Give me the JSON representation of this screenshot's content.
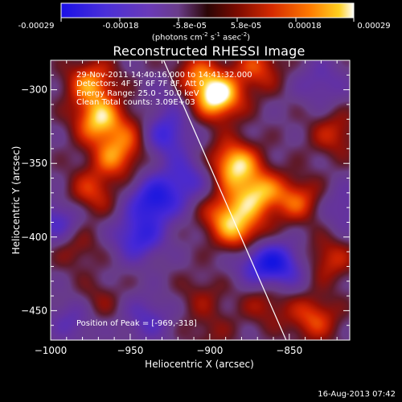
{
  "colorbar": {
    "ticks": [
      "-0.00029",
      "-0.00018",
      "-5.8e-05",
      "5.8e-05",
      "0.00018",
      "0.00029"
    ],
    "units_prefix": "(photons cm",
    "units_exp1": "-2",
    "units_mid": " s",
    "units_exp2": "-1",
    "units_mid2": " asec",
    "units_exp3": "-2",
    "units_suffix": ")"
  },
  "chart_data": {
    "type": "heatmap",
    "title": "Reconstructed RHESSI Image",
    "xlabel": "Heliocentric X (arcsec)",
    "ylabel": "Heliocentric Y (arcsec)",
    "xlim": [
      -1000,
      -812
    ],
    "ylim": [
      -470,
      -280
    ],
    "xticks": [
      -1000,
      -950,
      -900,
      -850
    ],
    "yticks": [
      -450,
      -400,
      -350,
      -300
    ],
    "colormap": "RHESSI red-yellow / purple-blue",
    "value_range": [
      -0.00029,
      0.00029
    ],
    "peak": {
      "x": -969,
      "y": -318
    },
    "limb_line": {
      "x_top": -929,
      "x_bottom": -852
    },
    "blobs": [
      {
        "x": -895,
        "y": -305,
        "v": 0.00029
      },
      {
        "x": -910,
        "y": -292,
        "v": 0.0002
      },
      {
        "x": -870,
        "y": -285,
        "v": 0.00015
      },
      {
        "x": -975,
        "y": -295,
        "v": 0.0002
      },
      {
        "x": -970,
        "y": -320,
        "v": 0.00024
      },
      {
        "x": -960,
        "y": -345,
        "v": 0.00018
      },
      {
        "x": -975,
        "y": -370,
        "v": 0.00014
      },
      {
        "x": -945,
        "y": -330,
        "v": 0.00012
      },
      {
        "x": -985,
        "y": -405,
        "v": 0.0001
      },
      {
        "x": -972,
        "y": -445,
        "v": 9e-05
      },
      {
        "x": -885,
        "y": -350,
        "v": 0.00026
      },
      {
        "x": -870,
        "y": -370,
        "v": 0.00022
      },
      {
        "x": -890,
        "y": -385,
        "v": 0.0002
      },
      {
        "x": -845,
        "y": -375,
        "v": 0.00016
      },
      {
        "x": -878,
        "y": -400,
        "v": 0.00018
      },
      {
        "x": -822,
        "y": -330,
        "v": 0.00012
      },
      {
        "x": -825,
        "y": -415,
        "v": 0.00013
      },
      {
        "x": -835,
        "y": -455,
        "v": 0.00016
      },
      {
        "x": -865,
        "y": -445,
        "v": 0.0001
      },
      {
        "x": -905,
        "y": -440,
        "v": 7e-05
      },
      {
        "x": -900,
        "y": -465,
        "v": 6e-05
      },
      {
        "x": -930,
        "y": -330,
        "v": -0.00022
      },
      {
        "x": -935,
        "y": -375,
        "v": -0.00025
      },
      {
        "x": -945,
        "y": -400,
        "v": -0.0002
      },
      {
        "x": -915,
        "y": -360,
        "v": -0.00015
      },
      {
        "x": -870,
        "y": -415,
        "v": -0.0002
      },
      {
        "x": -855,
        "y": -420,
        "v": -0.00018
      },
      {
        "x": -995,
        "y": -390,
        "v": -0.00016
      },
      {
        "x": -985,
        "y": -455,
        "v": -0.00012
      },
      {
        "x": -940,
        "y": -455,
        "v": -0.00012
      },
      {
        "x": -920,
        "y": -300,
        "v": -0.0001
      },
      {
        "x": -830,
        "y": -295,
        "v": -0.0001
      },
      {
        "x": -815,
        "y": -380,
        "v": -0.0001
      }
    ]
  },
  "overlay": {
    "time": "29-Nov-2011 14:40:16.000 to 14:41:32.000",
    "detectors": "Detectors: 4F 5F 6F 7F 8F, Att 0",
    "energy": "Energy Range: 25.0 - 50.0 keV",
    "clean": "Clean     Total counts: 3.09E+03",
    "peak": "Position of Peak = [-969,-318]"
  },
  "footer": {
    "timestamp": "16-Aug-2013 07:42"
  }
}
